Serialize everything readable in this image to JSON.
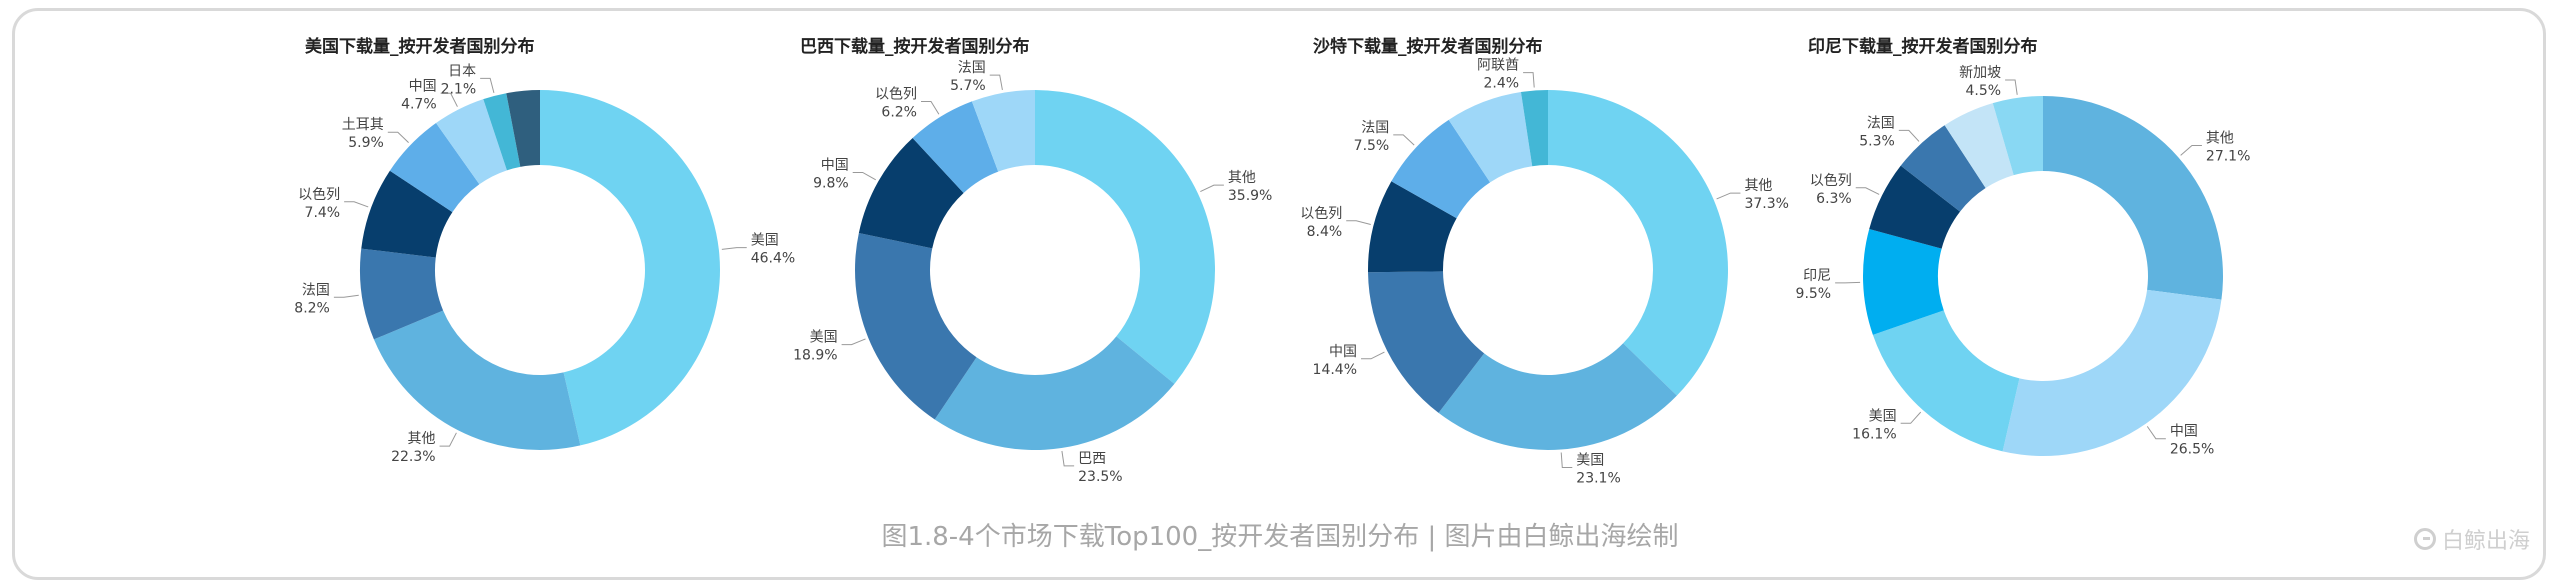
{
  "caption": "图1.8-4个市场下载Top100_按开发者国别分布 | 图片由白鲸出海绘制",
  "watermark": "白鲸出海",
  "chart_data": [
    {
      "type": "pie",
      "title": "美国下载量_按开发者国别分布",
      "slices": [
        {
          "label": "美国",
          "value": 46.4,
          "color": "#6fd3f2"
        },
        {
          "label": "其他",
          "value": 22.3,
          "color": "#5fb3df"
        },
        {
          "label": "法国",
          "value": 8.2,
          "color": "#3a77ae"
        },
        {
          "label": "以色列",
          "value": 7.4,
          "color": "#073e6d"
        },
        {
          "label": "土耳其",
          "value": 5.9,
          "color": "#5eaee9"
        },
        {
          "label": "中国",
          "value": 4.7,
          "color": "#9ed7f8"
        },
        {
          "label": "日本",
          "value": 2.1,
          "color": "#43b7d6"
        },
        {
          "label": "",
          "value": 3.0,
          "color": "#2f5f7e"
        }
      ]
    },
    {
      "type": "pie",
      "title": "巴西下载量_按开发者国别分布",
      "slices": [
        {
          "label": "其他",
          "value": 35.9,
          "color": "#6fd3f2"
        },
        {
          "label": "巴西",
          "value": 23.5,
          "color": "#5fb3df"
        },
        {
          "label": "美国",
          "value": 18.9,
          "color": "#3a77ae"
        },
        {
          "label": "中国",
          "value": 9.8,
          "color": "#073e6d"
        },
        {
          "label": "以色列",
          "value": 6.2,
          "color": "#5eaee9"
        },
        {
          "label": "法国",
          "value": 5.7,
          "color": "#9ed7f8"
        }
      ]
    },
    {
      "type": "pie",
      "title": "沙特下载量_按开发者国别分布",
      "slices": [
        {
          "label": "其他",
          "value": 37.3,
          "color": "#6fd3f2"
        },
        {
          "label": "美国",
          "value": 23.1,
          "color": "#5fb3df"
        },
        {
          "label": "中国",
          "value": 14.4,
          "color": "#3a77ae"
        },
        {
          "label": "以色列",
          "value": 8.4,
          "color": "#073e6d"
        },
        {
          "label": "法国",
          "value": 7.5,
          "color": "#5eaee9"
        },
        {
          "label": "",
          "value": 6.9,
          "color": "#9ed7f8"
        },
        {
          "label": "阿联酋",
          "value": 2.4,
          "color": "#43b7d6"
        }
      ]
    },
    {
      "type": "pie",
      "title": "印尼下载量_按开发者国别分布",
      "slices": [
        {
          "label": "其他",
          "value": 27.1,
          "color": "#5fb3df"
        },
        {
          "label": "中国",
          "value": 26.5,
          "color": "#9ed7f8"
        },
        {
          "label": "美国",
          "value": 16.1,
          "color": "#6fd3f2"
        },
        {
          "label": "印尼",
          "value": 9.5,
          "color": "#00aef0"
        },
        {
          "label": "以色列",
          "value": 6.3,
          "color": "#073e6d"
        },
        {
          "label": "法国",
          "value": 5.3,
          "color": "#3a77ae"
        },
        {
          "label": "",
          "value": 4.7,
          "color": "#c3e4f7"
        },
        {
          "label": "新加坡",
          "value": 4.5,
          "color": "#89d8f3"
        }
      ]
    }
  ]
}
